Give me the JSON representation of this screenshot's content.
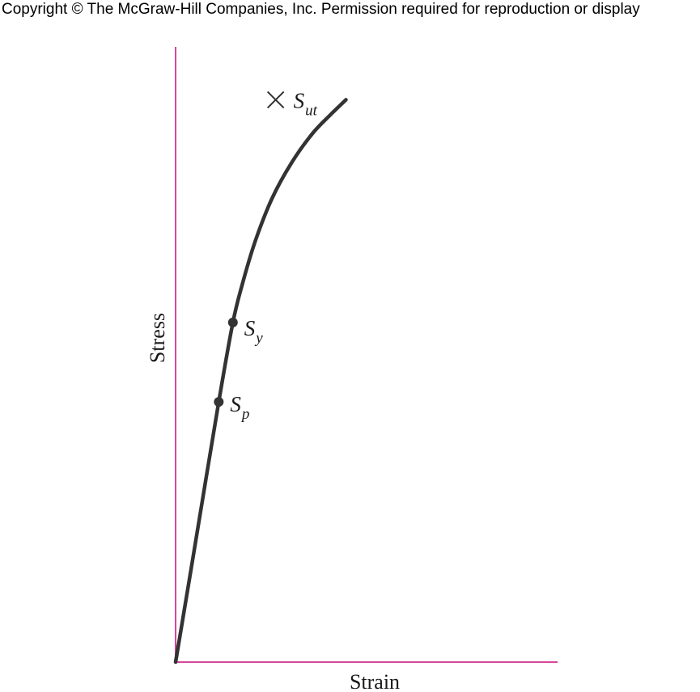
{
  "copyright": "Copyright © The McGraw-Hill Companies, Inc. Permission required for reproduction or display",
  "colors": {
    "axis": "#d6479a",
    "curve": "#333333",
    "text": "#1a1a1a"
  },
  "chart_data": {
    "type": "line",
    "title": "",
    "xlabel": "Strain",
    "ylabel": "Stress",
    "grid": false,
    "ticks": false,
    "series": [
      {
        "points": [
          [
            0,
            0
          ],
          [
            5.2,
            19.4
          ],
          [
            11.3,
            42.3
          ],
          [
            15,
            55.2
          ],
          [
            17.5,
            61.5
          ],
          [
            20.9,
            68.5
          ],
          [
            25.2,
            75.3
          ],
          [
            30.4,
            81.2
          ],
          [
            35.8,
            85.9
          ],
          [
            40.6,
            89
          ],
          [
            44.6,
            91.4
          ]
        ]
      }
    ],
    "points": [
      {
        "symbol": "S",
        "sub": "p",
        "x": 11.3,
        "y": 42.3,
        "marker": "dot"
      },
      {
        "symbol": "S",
        "sub": "y",
        "x": 15,
        "y": 55.2,
        "marker": "dot"
      },
      {
        "symbol": "S",
        "sub": "ut",
        "x": 26.2,
        "y": 91.4,
        "marker": "cross"
      }
    ]
  }
}
